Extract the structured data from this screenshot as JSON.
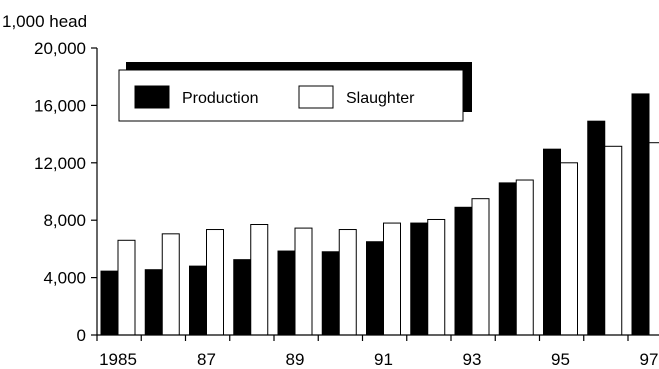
{
  "chart_data": {
    "type": "bar",
    "ylabel": "1,000 head",
    "categories": [
      "1985",
      "1986",
      "1987",
      "1988",
      "1989",
      "1990",
      "1991",
      "1992",
      "1993",
      "1994",
      "1995",
      "1996",
      "1997"
    ],
    "x_tick_labels": [
      "1985",
      "87",
      "89",
      "91",
      "93",
      "95",
      "97"
    ],
    "y_tick_labels": [
      "0",
      "4,000",
      "8,000",
      "12,000",
      "16,000",
      "20,000"
    ],
    "y_ticks": [
      0,
      4000,
      8000,
      12000,
      16000,
      20000
    ],
    "ylim": [
      0,
      20000
    ],
    "grid": false,
    "legend_position": "top-left",
    "series": [
      {
        "name": "Production",
        "color": "#000000",
        "values": [
          4450,
          4550,
          4800,
          5250,
          5850,
          5800,
          6500,
          7800,
          8900,
          10600,
          12950,
          14900,
          16800
        ]
      },
      {
        "name": "Slaughter",
        "color": "#ffffff",
        "values": [
          6600,
          7050,
          7350,
          7700,
          7450,
          7350,
          7800,
          8050,
          9500,
          10800,
          12000,
          13150,
          13400
        ]
      }
    ]
  }
}
